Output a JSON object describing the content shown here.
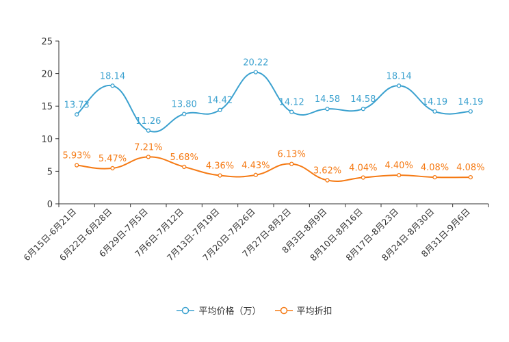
{
  "chart_data": {
    "type": "line",
    "categories": [
      "6月15日-6月21日",
      "6月22日-6月28日",
      "6月29日-7月5日",
      "7月6日-7月12日",
      "7月13日-7月19日",
      "7月20日-7月26日",
      "7月27日-8月2日",
      "8月3日-8月9日",
      "8月10日-8月16日",
      "8月17日-8月23日",
      "8月24日-8月30日",
      "8月31日-9月6日"
    ],
    "series": [
      {
        "name": "平均价格（万）",
        "color": "#3ba1cf",
        "values": [
          13.73,
          18.14,
          11.26,
          13.8,
          14.42,
          20.22,
          14.12,
          14.58,
          14.58,
          18.14,
          14.19,
          14.19
        ],
        "labels": [
          "13.73",
          "18.14",
          "11.26",
          "13.80",
          "14.42",
          "20.22",
          "14.12",
          "14.58",
          "14.58",
          "18.14",
          "14.19",
          "14.19"
        ]
      },
      {
        "name": "平均折扣",
        "color": "#f57a14",
        "values": [
          5.93,
          5.47,
          7.21,
          5.68,
          4.36,
          4.43,
          6.13,
          3.62,
          4.04,
          4.4,
          4.08,
          4.08
        ],
        "labels": [
          "5.93%",
          "5.47%",
          "7.21%",
          "5.68%",
          "4.36%",
          "4.43%",
          "6.13%",
          "3.62%",
          "4.04%",
          "4.40%",
          "4.08%",
          "4.08%"
        ]
      }
    ],
    "ylim": [
      0,
      25
    ],
    "yticks": [
      "0",
      "5",
      "10",
      "15",
      "20",
      "25"
    ],
    "title": "",
    "xlabel": "",
    "ylabel": "",
    "legend_position": "bottom-center"
  }
}
